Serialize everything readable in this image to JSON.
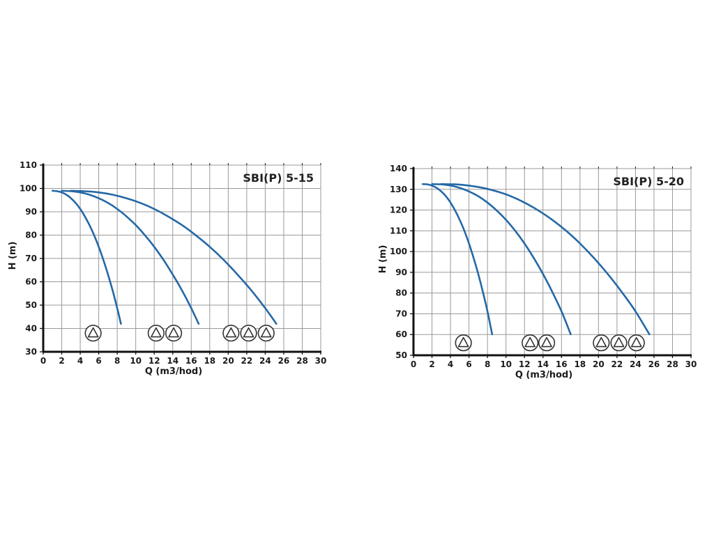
{
  "page": {
    "background": "#ffffff"
  },
  "style": {
    "curve_color": "#2468a6",
    "grid_color": "#999999",
    "axis_color": "#111111",
    "text_color": "#1a1a1a",
    "pump_icon_color": "#333333"
  },
  "chart_data": [
    {
      "type": "line",
      "title": "SBI(P) 5-15",
      "xlabel": "Q (m3/hod)",
      "ylabel": "H (m)",
      "xlim": [
        0,
        30
      ],
      "ylim": [
        30,
        110
      ],
      "x_ticks": [
        0,
        2,
        4,
        6,
        8,
        10,
        12,
        14,
        16,
        18,
        20,
        22,
        24,
        26,
        28,
        30
      ],
      "y_ticks": [
        30,
        40,
        50,
        60,
        70,
        80,
        90,
        100,
        110
      ],
      "grid": true,
      "legend": "none",
      "series": [
        {
          "name": "1 pump",
          "points": [
            [
              1,
              99
            ],
            [
              1.5,
              98.8
            ],
            [
              2,
              98.3
            ],
            [
              2.5,
              97.3
            ],
            [
              3,
              95.8
            ],
            [
              3.5,
              93.8
            ],
            [
              4,
              91.2
            ],
            [
              4.5,
              88.0
            ],
            [
              5,
              84.3
            ],
            [
              5.5,
              79.9
            ],
            [
              6,
              75.0
            ],
            [
              6.5,
              69.4
            ],
            [
              7,
              63.1
            ],
            [
              7.5,
              56.3
            ],
            [
              8,
              48.7
            ],
            [
              8.4,
              42.0
            ]
          ]
        },
        {
          "name": "2 pumps",
          "points": [
            [
              2,
              99
            ],
            [
              3,
              98.8
            ],
            [
              4,
              98.3
            ],
            [
              5,
              97.3
            ],
            [
              6,
              95.8
            ],
            [
              7,
              93.8
            ],
            [
              8,
              91.2
            ],
            [
              9,
              88.0
            ],
            [
              10,
              84.3
            ],
            [
              11,
              79.9
            ],
            [
              12,
              75.0
            ],
            [
              13,
              69.4
            ],
            [
              14,
              63.1
            ],
            [
              15,
              56.3
            ],
            [
              16,
              48.7
            ],
            [
              16.8,
              42.0
            ]
          ]
        },
        {
          "name": "3 pumps",
          "points": [
            [
              3,
              99
            ],
            [
              4.5,
              98.8
            ],
            [
              6,
              98.3
            ],
            [
              7.5,
              97.3
            ],
            [
              9,
              95.8
            ],
            [
              10.5,
              93.8
            ],
            [
              12,
              91.2
            ],
            [
              13.5,
              88.0
            ],
            [
              15,
              84.3
            ],
            [
              16.5,
              79.9
            ],
            [
              18,
              75.0
            ],
            [
              19.5,
              69.4
            ],
            [
              21,
              63.1
            ],
            [
              22.5,
              56.3
            ],
            [
              24,
              48.7
            ],
            [
              25.2,
              42.0
            ]
          ]
        }
      ],
      "pump_markers": {
        "h": 38,
        "groups": [
          [
            5.4
          ],
          [
            12.2,
            14.1
          ],
          [
            20.3,
            22.2,
            24.1
          ]
        ]
      }
    },
    {
      "type": "line",
      "title": "SBI(P) 5-20",
      "xlabel": "Q (m3/hod)",
      "ylabel": "H (m)",
      "xlim": [
        0,
        30
      ],
      "ylim": [
        50,
        140
      ],
      "x_ticks": [
        0,
        2,
        4,
        6,
        8,
        10,
        12,
        14,
        16,
        18,
        20,
        22,
        24,
        26,
        28,
        30
      ],
      "y_ticks": [
        50,
        60,
        70,
        80,
        90,
        100,
        110,
        120,
        130,
        140
      ],
      "grid": true,
      "legend": "none",
      "series": [
        {
          "name": "1 pump",
          "points": [
            [
              1,
              132.5
            ],
            [
              1.5,
              132.4
            ],
            [
              2,
              131.8
            ],
            [
              2.5,
              130.7
            ],
            [
              3,
              129.0
            ],
            [
              3.5,
              126.7
            ],
            [
              4,
              123.6
            ],
            [
              4.5,
              119.8
            ],
            [
              5,
              115.3
            ],
            [
              5.5,
              110.0
            ],
            [
              6,
              103.9
            ],
            [
              6.5,
              96.9
            ],
            [
              7,
              89.2
            ],
            [
              7.5,
              80.6
            ],
            [
              8,
              71.2
            ],
            [
              8.5,
              60.1
            ]
          ]
        },
        {
          "name": "2 pumps",
          "points": [
            [
              2,
              132.5
            ],
            [
              3,
              132.4
            ],
            [
              4,
              131.8
            ],
            [
              5,
              130.7
            ],
            [
              6,
              129.0
            ],
            [
              7,
              126.7
            ],
            [
              8,
              123.6
            ],
            [
              9,
              119.8
            ],
            [
              10,
              115.3
            ],
            [
              11,
              110.0
            ],
            [
              12,
              103.9
            ],
            [
              13,
              96.9
            ],
            [
              14,
              89.2
            ],
            [
              15,
              80.6
            ],
            [
              16,
              71.2
            ],
            [
              17,
              60.1
            ]
          ]
        },
        {
          "name": "3 pumps",
          "points": [
            [
              3,
              132.5
            ],
            [
              4.5,
              132.4
            ],
            [
              6,
              131.8
            ],
            [
              7.5,
              130.7
            ],
            [
              9,
              129.0
            ],
            [
              10.5,
              126.7
            ],
            [
              12,
              123.6
            ],
            [
              13.5,
              119.8
            ],
            [
              15,
              115.3
            ],
            [
              16.5,
              110.0
            ],
            [
              18,
              103.9
            ],
            [
              19.5,
              96.9
            ],
            [
              21,
              89.2
            ],
            [
              22.5,
              80.6
            ],
            [
              24,
              71.2
            ],
            [
              25.5,
              60.1
            ]
          ]
        }
      ],
      "pump_markers": {
        "h": 56,
        "groups": [
          [
            5.4
          ],
          [
            12.6,
            14.4
          ],
          [
            20.3,
            22.2,
            24.1
          ]
        ]
      }
    }
  ]
}
